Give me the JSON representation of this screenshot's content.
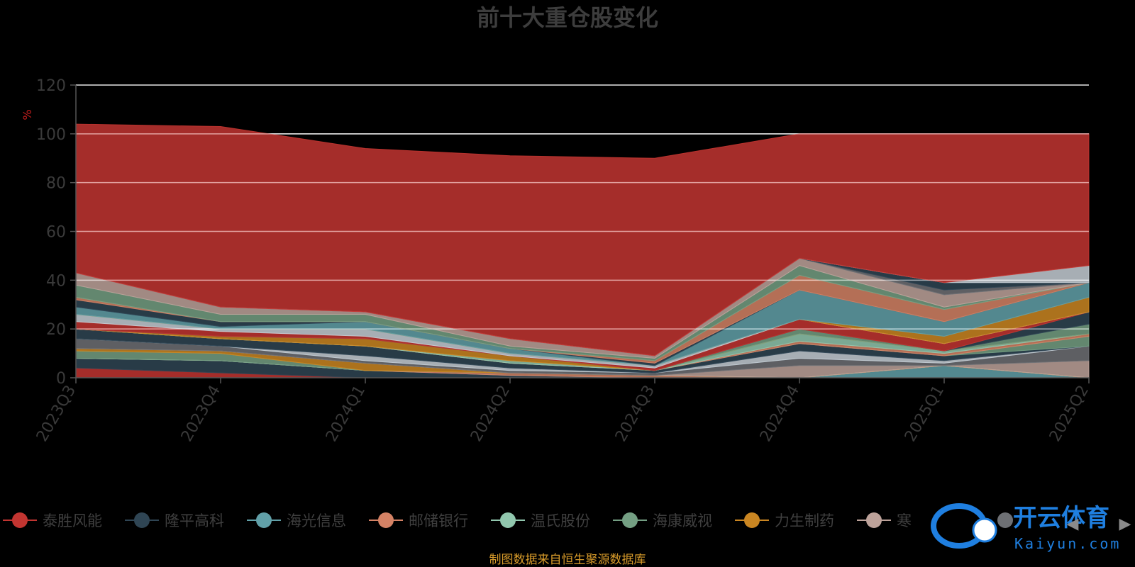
{
  "title": "前十大重仓股变化",
  "unit_label": "%",
  "source_note": "制图数据来自恒生聚源数据库",
  "watermark": {
    "brand": "开云体育",
    "site": "Kaiyun.com"
  },
  "legend_nav": {
    "prev": "◀",
    "next": "▶"
  },
  "chart_data": {
    "type": "area",
    "stacked": true,
    "x": [
      "2023Q3",
      "2023Q4",
      "2024Q1",
      "2024Q2",
      "2024Q3",
      "2024Q4",
      "2025Q1",
      "2025Q2"
    ],
    "ylim": [
      0,
      120
    ],
    "yticks": [
      0,
      20,
      40,
      60,
      80,
      100,
      120
    ],
    "grid": true,
    "legend_position": "bottom",
    "series": [
      {
        "name": "泰胜风能",
        "color": "#c23531",
        "values": [
          4,
          2,
          0,
          0,
          0,
          0,
          0,
          0
        ]
      },
      {
        "name": "隆平高科",
        "color": "#2f4554",
        "values": [
          4,
          5,
          3,
          1,
          0,
          0,
          0,
          0
        ]
      },
      {
        "name": "海光信息",
        "color": "#61a0a8",
        "values": [
          0,
          0,
          0,
          0,
          0,
          0,
          5,
          0
        ]
      },
      {
        "name": "邮储银行",
        "color": "#d48265",
        "values": [
          0,
          0,
          0,
          1,
          1,
          0,
          0,
          0
        ]
      },
      {
        "name": "温氏股份",
        "color": "#91c7ae",
        "values": [
          0,
          0,
          0,
          0,
          0,
          0,
          0,
          0
        ]
      },
      {
        "name": "海康威视",
        "color": "#749f83",
        "values": [
          3,
          3,
          0,
          0,
          0,
          0,
          0,
          0
        ]
      },
      {
        "name": "力生制药",
        "color": "#ca8622",
        "values": [
          1,
          1,
          3,
          0,
          0,
          0,
          0,
          0
        ]
      },
      {
        "name": "寒",
        "color": "#bda29a",
        "values": [
          0,
          0,
          0,
          0,
          0,
          5,
          0,
          7
        ]
      },
      {
        "name": "",
        "color": "#6e7074",
        "values": [
          4,
          2,
          1,
          1,
          1,
          3,
          1,
          6
        ]
      },
      {
        "name": "",
        "color": "#546570",
        "values": [
          0,
          0,
          0,
          0,
          0,
          0,
          0,
          0
        ]
      },
      {
        "name": "",
        "color": "#c4ccd3",
        "values": [
          0,
          0,
          2,
          1,
          0,
          3,
          1,
          0
        ]
      },
      {
        "name": "",
        "color": "#2f4554",
        "values": [
          4,
          3,
          4,
          2,
          1,
          3,
          2,
          0
        ]
      },
      {
        "name": "",
        "color": "#749f83",
        "values": [
          0,
          0,
          0,
          0,
          0,
          0,
          0,
          4
        ]
      },
      {
        "name": "",
        "color": "#d48265",
        "values": [
          0,
          0,
          0,
          0,
          0,
          1,
          1,
          1
        ]
      },
      {
        "name": "",
        "color": "#91c7ae",
        "values": [
          0,
          0,
          0,
          1,
          0,
          3,
          1,
          0
        ]
      },
      {
        "name": "",
        "color": "#ca8622",
        "values": [
          0,
          1,
          3,
          2,
          0,
          0,
          0,
          0
        ]
      },
      {
        "name": "",
        "color": "#749f83",
        "values": [
          0,
          0,
          0,
          0,
          0,
          2,
          0,
          4
        ]
      },
      {
        "name": "",
        "color": "#2f4554",
        "values": [
          0,
          0,
          0,
          0,
          0,
          0,
          0,
          5
        ]
      },
      {
        "name": "",
        "color": "#c23531",
        "values": [
          3,
          2,
          1,
          0,
          1,
          4,
          3,
          0
        ]
      },
      {
        "name": "",
        "color": "#c4ccd3",
        "values": [
          3,
          1,
          3,
          1,
          1,
          0,
          0,
          0
        ]
      },
      {
        "name": "",
        "color": "#ca8622",
        "values": [
          0,
          0,
          0,
          0,
          0,
          0,
          3,
          6
        ]
      },
      {
        "name": "",
        "color": "#61a0a8",
        "values": [
          3,
          1,
          3,
          2,
          0,
          12,
          6,
          6
        ]
      },
      {
        "name": "",
        "color": "#2f4554",
        "values": [
          3,
          2,
          0,
          0,
          1,
          0,
          0,
          0
        ]
      },
      {
        "name": "",
        "color": "#d48265",
        "values": [
          1,
          0,
          0,
          0,
          1,
          6,
          5,
          0
        ]
      },
      {
        "name": "",
        "color": "#749f83",
        "values": [
          5,
          3,
          3,
          1,
          1,
          4,
          1,
          0
        ]
      },
      {
        "name": "",
        "color": "#bda29a",
        "values": [
          5,
          3,
          1,
          3,
          1,
          3,
          5,
          0
        ]
      },
      {
        "name": "",
        "color": "#6e7074",
        "values": [
          0,
          0,
          0,
          0,
          0,
          0,
          2,
          0
        ]
      },
      {
        "name": "",
        "color": "#2f4554",
        "values": [
          0,
          0,
          0,
          0,
          0,
          0,
          3,
          0
        ]
      },
      {
        "name": "",
        "color": "#c4ccd3",
        "values": [
          0,
          0,
          0,
          0,
          0,
          0,
          0,
          7
        ]
      },
      {
        "name": "",
        "color": "#c23531",
        "values": [
          61,
          74,
          67,
          75,
          81,
          51,
          61,
          54
        ]
      }
    ]
  }
}
